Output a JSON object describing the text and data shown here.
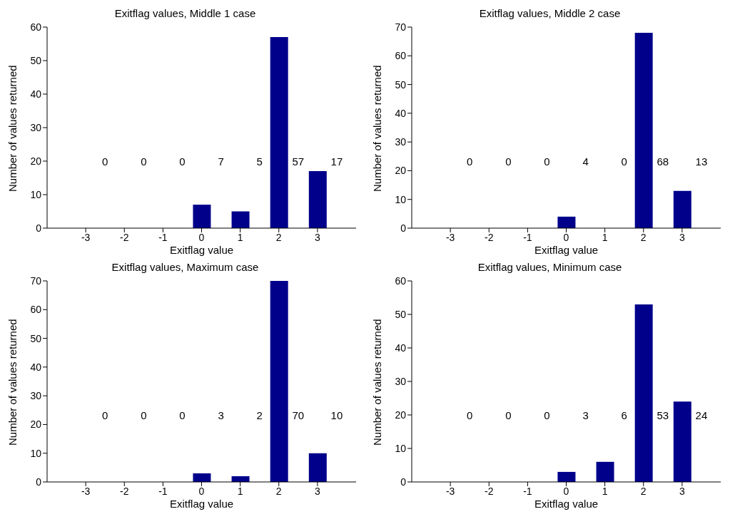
{
  "chart_data": [
    {
      "type": "bar",
      "title": "Exitflag values, Middle 1 case",
      "xlabel": "Exitflag value",
      "ylabel": "Number of values returned",
      "x": [
        -3,
        -2,
        -1,
        0,
        1,
        2,
        3
      ],
      "values": [
        0,
        0,
        0,
        7,
        5,
        57,
        17
      ],
      "color": "#00008b",
      "xlim": [
        -4,
        4
      ],
      "xticks": [
        -3,
        -2,
        -1,
        0,
        1,
        2,
        3
      ],
      "ylim": [
        0,
        60
      ],
      "yticks": [
        0,
        10,
        20,
        30,
        40,
        50,
        60
      ],
      "grid": false,
      "legend": false,
      "annotations": [
        "0",
        "0",
        "0",
        "7",
        "5",
        "57",
        "17"
      ]
    },
    {
      "type": "bar",
      "title": "Exitflag values, Middle 2 case",
      "xlabel": "Exitflag value",
      "ylabel": "Number of values returned",
      "x": [
        -3,
        -2,
        -1,
        0,
        1,
        2,
        3
      ],
      "values": [
        0,
        0,
        0,
        4,
        0,
        68,
        13
      ],
      "color": "#00008b",
      "xlim": [
        -4,
        4
      ],
      "xticks": [
        -3,
        -2,
        -1,
        0,
        1,
        2,
        3
      ],
      "ylim": [
        0,
        70
      ],
      "yticks": [
        0,
        10,
        20,
        30,
        40,
        50,
        60,
        70
      ],
      "grid": false,
      "legend": false,
      "annotations": [
        "0",
        "0",
        "0",
        "4",
        "0",
        "68",
        "13"
      ]
    },
    {
      "type": "bar",
      "title": "Exitflag values, Maximum case",
      "xlabel": "Exitflag value",
      "ylabel": "Number of values returned",
      "x": [
        -3,
        -2,
        -1,
        0,
        1,
        2,
        3
      ],
      "values": [
        0,
        0,
        0,
        3,
        2,
        70,
        10
      ],
      "color": "#00008b",
      "xlim": [
        -4,
        4
      ],
      "xticks": [
        -3,
        -2,
        -1,
        0,
        1,
        2,
        3
      ],
      "ylim": [
        0,
        70
      ],
      "yticks": [
        0,
        10,
        20,
        30,
        40,
        50,
        60,
        70
      ],
      "grid": false,
      "legend": false,
      "annotations": [
        "0",
        "0",
        "0",
        "3",
        "2",
        "70",
        "10"
      ]
    },
    {
      "type": "bar",
      "title": "Exitflag values, Minimum case",
      "xlabel": "Exitflag value",
      "ylabel": "Number of values returned",
      "x": [
        -3,
        -2,
        -1,
        0,
        1,
        2,
        3
      ],
      "values": [
        0,
        0,
        0,
        3,
        6,
        53,
        24
      ],
      "color": "#00008b",
      "xlim": [
        -4,
        4
      ],
      "xticks": [
        -3,
        -2,
        -1,
        0,
        1,
        2,
        3
      ],
      "ylim": [
        0,
        60
      ],
      "yticks": [
        0,
        10,
        20,
        30,
        40,
        50,
        60
      ],
      "grid": false,
      "legend": false,
      "annotations": [
        "0",
        "0",
        "0",
        "3",
        "6",
        "53",
        "24"
      ]
    }
  ]
}
